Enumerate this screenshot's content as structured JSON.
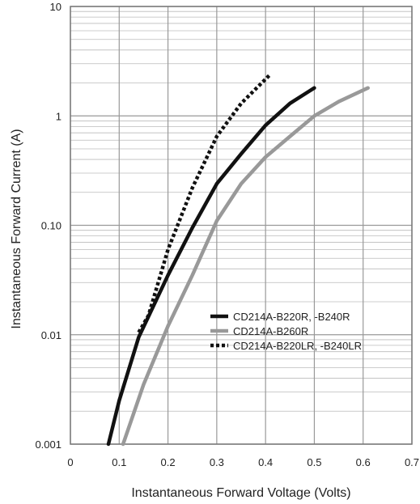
{
  "chart_data": {
    "type": "line",
    "xlabel": "Instantaneous Forward Voltage (Volts)",
    "ylabel": "Instantaneous Forward Current (A)",
    "xlim": [
      0,
      0.7
    ],
    "ylim": [
      0.001,
      10
    ],
    "y_scale": "log",
    "grid": true,
    "legend_position": "center-right",
    "x_ticks": [
      "0",
      "0.1",
      "0.2",
      "0.3",
      "0.4",
      "0.5",
      "0.6",
      "0.7"
    ],
    "y_ticks": [
      "0.001",
      "0.01",
      "0.10",
      "1",
      "10"
    ],
    "series": [
      {
        "name": "CD214A-B220R, -B240R",
        "style": "solid",
        "color": "#111111",
        "x": [
          0.078,
          0.1,
          0.14,
          0.2,
          0.25,
          0.3,
          0.35,
          0.4,
          0.45,
          0.5
        ],
        "y": [
          0.001,
          0.0025,
          0.0095,
          0.035,
          0.095,
          0.24,
          0.45,
          0.82,
          1.3,
          1.8
        ]
      },
      {
        "name": "CD214A-B260R",
        "style": "solid",
        "color": "#999999",
        "x": [
          0.108,
          0.15,
          0.2,
          0.25,
          0.3,
          0.35,
          0.4,
          0.45,
          0.5,
          0.55,
          0.61
        ],
        "y": [
          0.001,
          0.0035,
          0.012,
          0.035,
          0.11,
          0.24,
          0.42,
          0.65,
          1.0,
          1.35,
          1.8
        ]
      },
      {
        "name": "CD214A-B220LR, -B240LR",
        "style": "dotted",
        "color": "#111111",
        "x": [
          0.14,
          0.16,
          0.2,
          0.25,
          0.3,
          0.35,
          0.41
        ],
        "y": [
          0.0105,
          0.015,
          0.06,
          0.22,
          0.65,
          1.3,
          2.4
        ]
      }
    ]
  }
}
